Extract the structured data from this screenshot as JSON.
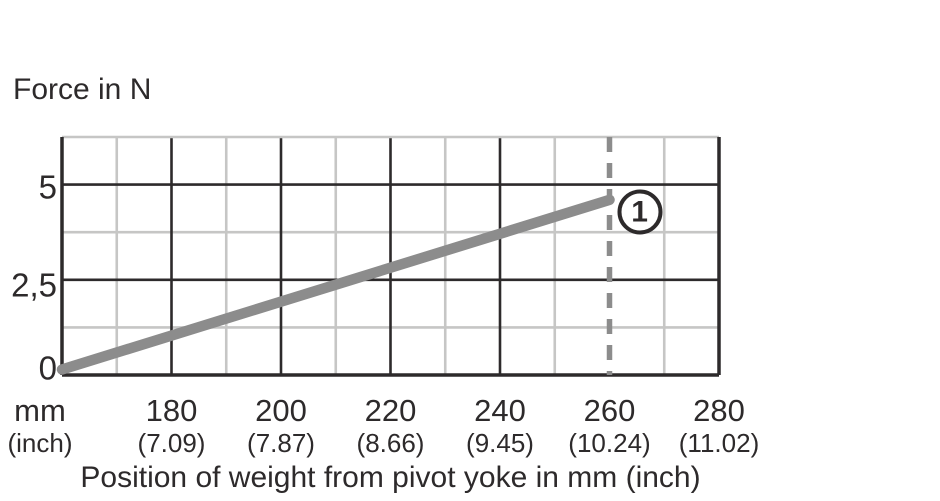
{
  "colors": {
    "ink": "#2d2a2b",
    "grid_minor": "#c6c6c5",
    "series_line": "#8c8c8c",
    "marker_line": "#8c8c8c",
    "background": "#ffffff",
    "annotation_fill": "#ffffff"
  },
  "chart_data": {
    "type": "line",
    "title": "",
    "ylabel": "Force in N",
    "xlabel": "Position of weight from pivot yoke in mm (inch)",
    "x_unit_row1": "mm",
    "x_unit_row2": "(inch)",
    "x_range": [
      160,
      280
    ],
    "y_range": [
      0,
      6.25
    ],
    "x_ticks": [
      {
        "mm": "180",
        "inch": "(7.09)",
        "value": 180
      },
      {
        "mm": "200",
        "inch": "(7.87)",
        "value": 200
      },
      {
        "mm": "220",
        "inch": "(8.66)",
        "value": 220
      },
      {
        "mm": "240",
        "inch": "(9.45)",
        "value": 240
      },
      {
        "mm": "260",
        "inch": "(10.24)",
        "value": 260
      },
      {
        "mm": "280",
        "inch": "(11.02)",
        "value": 280
      }
    ],
    "y_ticks": [
      {
        "label": "5",
        "value": 5
      },
      {
        "label": "2,5",
        "value": 2.5
      },
      {
        "label": "0",
        "value": 0
      }
    ],
    "gridlines": {
      "x_minor": [
        170,
        190,
        210,
        230,
        250,
        270
      ],
      "x_major": [
        180,
        200,
        220,
        240
      ],
      "y_minor": [
        1.25,
        3.75
      ],
      "y_major": [
        2.5,
        5
      ]
    },
    "series": [
      {
        "name": "force-vs-position",
        "color": "#8c8c8c",
        "points": [
          [
            160,
            0
          ],
          [
            260,
            4.6
          ]
        ]
      }
    ],
    "marker_line": {
      "x_mm": 260,
      "style": "dashed",
      "color": "#8c8c8c"
    },
    "annotation": {
      "label": "1",
      "x_mm": 265.5,
      "y_n": 4.27
    }
  }
}
